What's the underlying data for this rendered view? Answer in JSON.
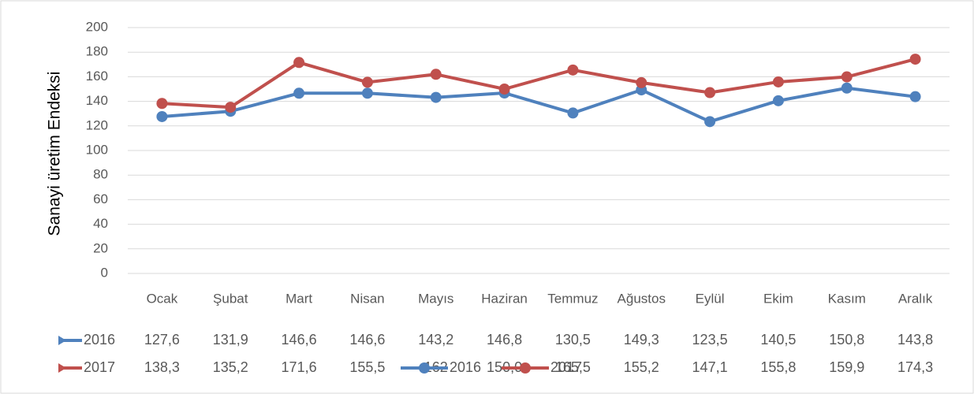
{
  "chart_data": {
    "type": "line",
    "y_label": "Sanayi   üretim Endeksi",
    "categories": [
      "Ocak",
      "Şubat",
      "Mart",
      "Nisan",
      "Mayıs",
      "Haziran",
      "Temmuz",
      "Ağustos",
      "Eylül",
      "Ekim",
      "Kasım",
      "Aralık"
    ],
    "series": [
      {
        "name": "2016",
        "color": "#4f81bd",
        "values": [
          127.6,
          131.9,
          146.6,
          146.6,
          143.2,
          146.8,
          130.5,
          149.3,
          123.5,
          140.5,
          150.8,
          143.8
        ],
        "value_labels": [
          "127,6",
          "131,9",
          "146,6",
          "146,6",
          "143,2",
          "146,8",
          "130,5",
          "149,3",
          "123,5",
          "140,5",
          "150,8",
          "143,8"
        ]
      },
      {
        "name": "2017",
        "color": "#c0504d",
        "values": [
          138.3,
          135.2,
          171.6,
          155.5,
          162,
          150,
          165.5,
          155.2,
          147.1,
          155.8,
          159.9,
          174.3
        ],
        "value_labels": [
          "138,3",
          "135,2",
          "171,6",
          "155,5",
          "162",
          "150,0",
          "165,5",
          "155,2",
          "147,1",
          "155,8",
          "159,9",
          "174,3"
        ]
      }
    ],
    "ylim": [
      0,
      200
    ],
    "yticks": [
      0,
      20,
      40,
      60,
      80,
      100,
      120,
      140,
      160,
      180,
      200
    ],
    "grid": true
  }
}
